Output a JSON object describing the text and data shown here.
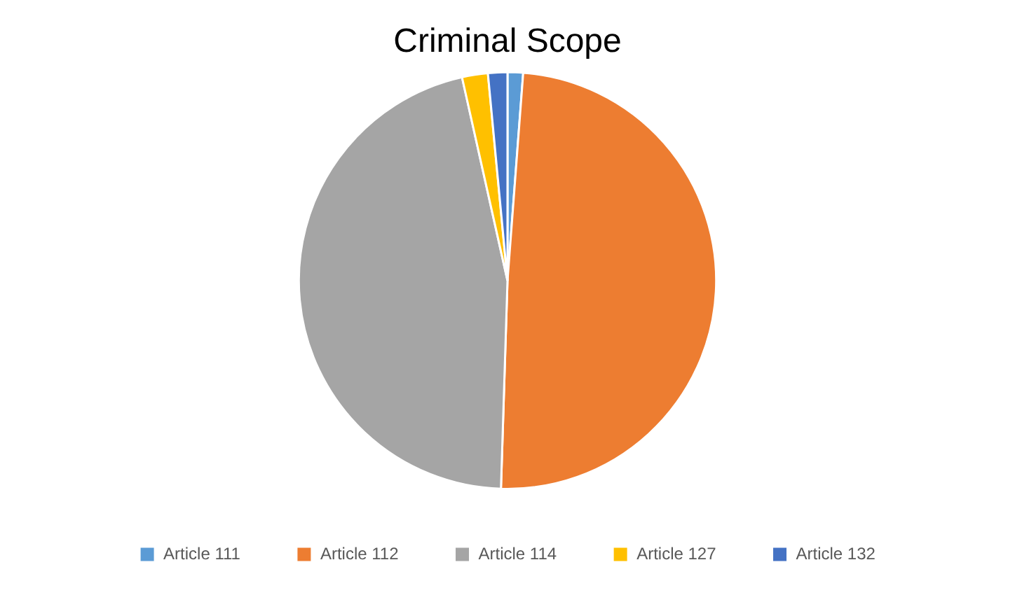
{
  "chart_data": {
    "type": "pie",
    "title": "Criminal Scope",
    "categories": [
      "Article 111",
      "Article 112",
      "Article 114",
      "Article 127",
      "Article 132"
    ],
    "values": [
      1.2,
      49.3,
      46,
      2,
      1.5
    ],
    "colors": [
      "#5b9bd5",
      "#ed7d31",
      "#a5a5a5",
      "#ffc000",
      "#4472c4"
    ],
    "legend": "bottom"
  }
}
